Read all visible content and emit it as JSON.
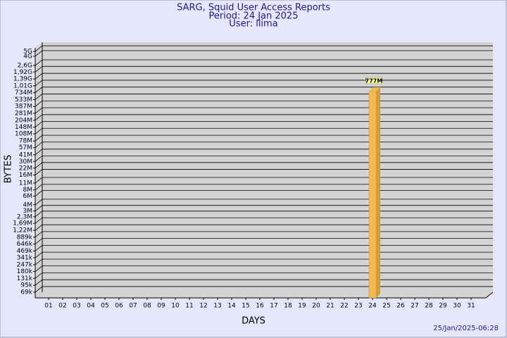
{
  "chart_data": {
    "type": "bar",
    "title": "SARG, Squid User Access Reports",
    "subtitle": "Period: 24 Jan 2025",
    "user": "User: llima",
    "x_label": "DAYS",
    "y_label": "BYTES",
    "timestamp": "25/Jan/2025-06:28",
    "categories": [
      "01",
      "02",
      "03",
      "04",
      "05",
      "06",
      "07",
      "08",
      "09",
      "10",
      "11",
      "12",
      "13",
      "14",
      "15",
      "16",
      "17",
      "18",
      "19",
      "20",
      "21",
      "22",
      "23",
      "24",
      "25",
      "26",
      "27",
      "28",
      "29",
      "30",
      "31"
    ],
    "values": [
      null,
      null,
      null,
      null,
      null,
      null,
      null,
      null,
      null,
      null,
      null,
      null,
      null,
      null,
      null,
      null,
      null,
      null,
      null,
      null,
      null,
      null,
      null,
      777000000,
      null,
      null,
      null,
      null,
      null,
      null,
      null
    ],
    "value_labels": [
      null,
      null,
      null,
      null,
      null,
      null,
      null,
      null,
      null,
      null,
      null,
      null,
      null,
      null,
      null,
      null,
      null,
      null,
      null,
      null,
      null,
      null,
      null,
      "777M",
      null,
      null,
      null,
      null,
      null,
      null,
      null
    ],
    "color": "#f5b950",
    "log_scale": true,
    "grid": true,
    "ylim": [
      53000,
      5900000000
    ],
    "yticks": [
      {
        "value": 69000,
        "label": "69k"
      },
      {
        "value": 95000,
        "label": "95k"
      },
      {
        "value": 131000,
        "label": "131k"
      },
      {
        "value": 180000,
        "label": "180k"
      },
      {
        "value": 247000,
        "label": "247k"
      },
      {
        "value": 341000,
        "label": "341k"
      },
      {
        "value": 469000,
        "label": "469k"
      },
      {
        "value": 646000,
        "label": "646k"
      },
      {
        "value": 889000,
        "label": "889k"
      },
      {
        "value": 1220000,
        "label": "1,22M"
      },
      {
        "value": 1690000,
        "label": "1,69M"
      },
      {
        "value": 2300000,
        "label": "2,3M"
      },
      {
        "value": 3000000,
        "label": "3M"
      },
      {
        "value": 4000000,
        "label": "4M"
      },
      {
        "value": 6000000,
        "label": "6M"
      },
      {
        "value": 8000000,
        "label": "8M"
      },
      {
        "value": 11000000,
        "label": "11M"
      },
      {
        "value": 16000000,
        "label": "16M"
      },
      {
        "value": 22000000,
        "label": "22M"
      },
      {
        "value": 30000000,
        "label": "30M"
      },
      {
        "value": 41000000,
        "label": "41M"
      },
      {
        "value": 57000000,
        "label": "57M"
      },
      {
        "value": 78000000,
        "label": "78M"
      },
      {
        "value": 108000000,
        "label": "108M"
      },
      {
        "value": 148000000,
        "label": "148M"
      },
      {
        "value": 204000000,
        "label": "204M"
      },
      {
        "value": 281000000,
        "label": "281M"
      },
      {
        "value": 387000000,
        "label": "387M"
      },
      {
        "value": 533000000,
        "label": "533M"
      },
      {
        "value": 734000000,
        "label": "734M"
      },
      {
        "value": 1010000000,
        "label": "1,01G"
      },
      {
        "value": 1390000000,
        "label": "1,39G"
      },
      {
        "value": 1920000000,
        "label": "1,92G"
      },
      {
        "value": 2600000000,
        "label": "2,6G"
      },
      {
        "value": 4000000000,
        "label": "4G"
      },
      {
        "value": 5000000000,
        "label": "5G"
      }
    ]
  }
}
